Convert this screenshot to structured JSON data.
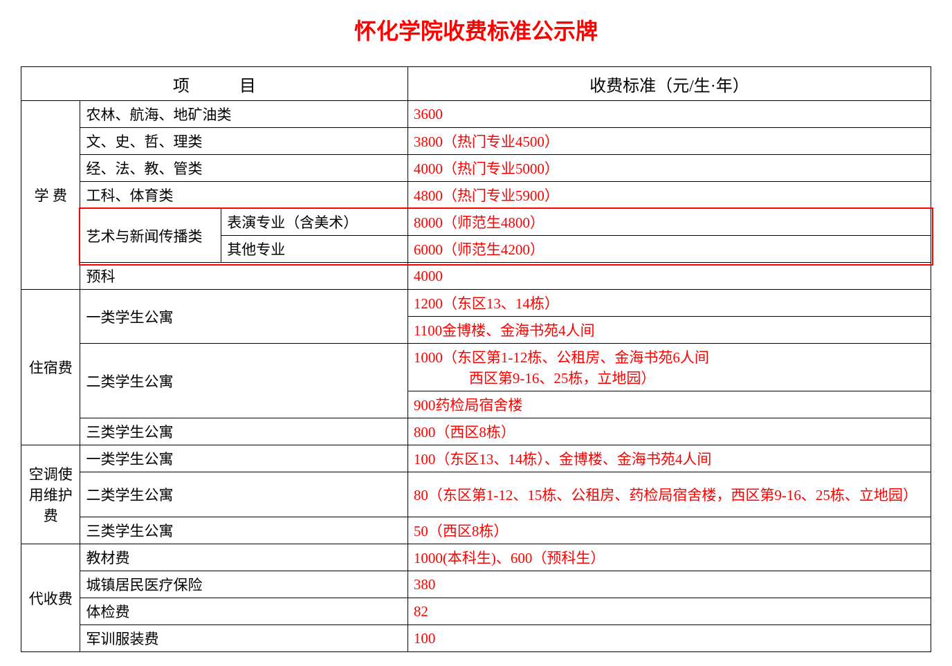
{
  "title": "怀化学院收费标准公示牌",
  "header": {
    "col1": "项　　　目",
    "col2": "收费标准（元/生·年）"
  },
  "sections": {
    "tuition": {
      "label": "学 费",
      "rows": [
        {
          "category": "农林、航海、地矿油类",
          "fee": "3600"
        },
        {
          "category": "文、史、哲、理类",
          "fee": "3800（热门专业4500）"
        },
        {
          "category": "经、法、教、管类",
          "fee": "4000（热门专业5000）"
        },
        {
          "category": "工科、体育类",
          "fee": "4800（热门专业5900）"
        }
      ],
      "art_group": {
        "label": "艺术与新闻传播类",
        "sub": [
          {
            "name": "表演专业（含美术）",
            "fee": "8000（师范生4800）"
          },
          {
            "name": "其他专业",
            "fee": "6000（师范生4200）"
          }
        ]
      },
      "prep": {
        "category": "预科",
        "fee": "4000"
      }
    },
    "dorm": {
      "label": "住宿费",
      "rows": [
        {
          "category": "一类学生公寓",
          "fees": [
            "1200（东区13、14栋）",
            "1100金博楼、金海书苑4人间"
          ]
        },
        {
          "category": "二类学生公寓",
          "fees": [
            "1000（东区第1-12栋、公租房、金海书苑6人间",
            "西区第9-16、25栋，立地园）",
            "900药检局宿舍楼"
          ]
        },
        {
          "category": "三类学生公寓",
          "fees": [
            "800（西区8栋）"
          ]
        }
      ]
    },
    "ac": {
      "label": "空调使用维护费",
      "rows": [
        {
          "category": "一类学生公寓",
          "fee": "100（东区13、14栋）、金博楼、金海书苑4人间"
        },
        {
          "category": "二类学生公寓",
          "fee": "80（东区第1-12、15栋、公租房、药检局宿舍楼，西区第9-16、25栋、立地园）"
        },
        {
          "category": "三类学生公寓",
          "fee": "50（西区8栋）"
        }
      ]
    },
    "collect": {
      "label": "代收费",
      "rows": [
        {
          "category": "教材费",
          "fee": "1000(本科生)、600（预科生）"
        },
        {
          "category": "城镇居民医疗保险",
          "fee": "380"
        },
        {
          "category": "体检费",
          "fee": "82"
        },
        {
          "category": "军训服装费",
          "fee": "100"
        }
      ]
    }
  },
  "style": {
    "title_color": "#ff0000",
    "fee_color": "#ff0000",
    "text_color": "#000000",
    "border_color": "#000000",
    "highlight_border": "#ff0000",
    "background": "#ffffff",
    "title_fontsize": 32,
    "cell_fontsize": 21,
    "header_fontsize": 24
  }
}
